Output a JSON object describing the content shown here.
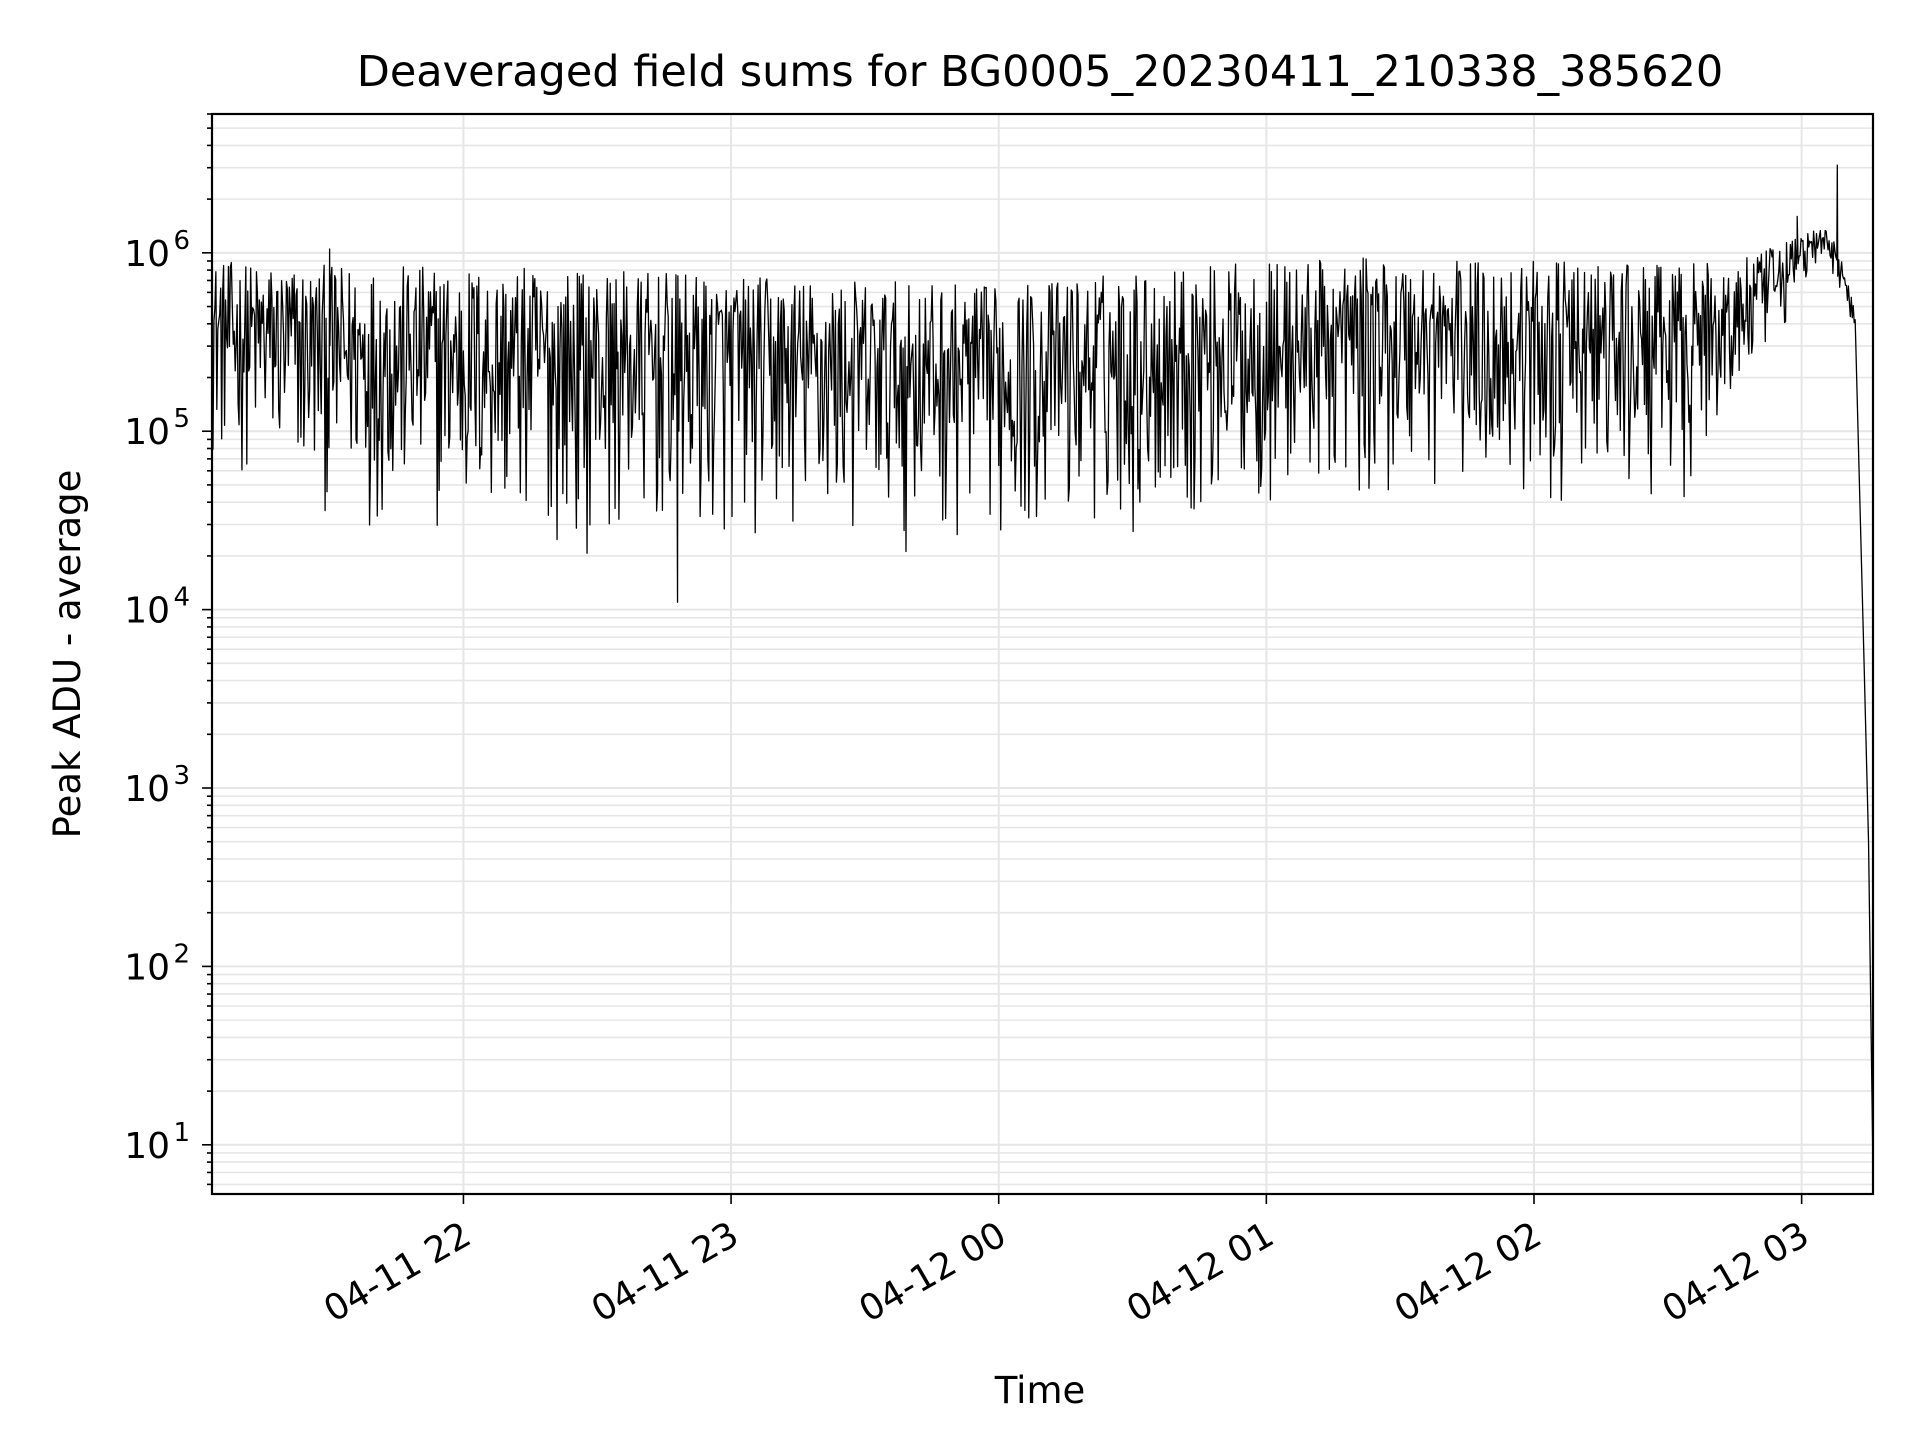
{
  "chart_data": {
    "type": "line",
    "title": "Deaveraged field sums for BG0005_20230411_210338_385620",
    "xlabel": "Time",
    "ylabel": "Peak ADU - average",
    "yscale": "log",
    "grid": true,
    "line_color": "#000000",
    "grid_color": "#e6e6e6",
    "ylim": [
      5.3,
      6000000
    ],
    "xlim": [
      "04-11 21:03:38",
      "04-12 03:16:00"
    ],
    "x_ticks": [
      "04-11 22",
      "04-11 23",
      "04-12 00",
      "04-12 01",
      "04-12 02",
      "04-12 03"
    ],
    "y_ticks": [
      {
        "base": "10",
        "exp": "1"
      },
      {
        "base": "10",
        "exp": "2"
      },
      {
        "base": "10",
        "exp": "3"
      },
      {
        "base": "10",
        "exp": "4"
      },
      {
        "base": "10",
        "exp": "5"
      },
      {
        "base": "10",
        "exp": "6"
      }
    ],
    "series": [
      {
        "envelope": {
          "x": [
            "04-11 21:03:38",
            "04-11 21:30",
            "04-11 22:00",
            "04-11 22:30",
            "04-11 23:00",
            "04-11 23:30",
            "04-12 00:00",
            "04-12 00:30",
            "04-12 01:00",
            "04-12 01:30",
            "04-12 02:00",
            "04-12 02:30",
            "04-12 02:45",
            "04-12 02:55",
            "04-12 03:00",
            "04-12 03:05",
            "04-12 03:08",
            "04-12 03:12",
            "04-12 03:14",
            "04-12 03:15",
            "04-12 03:16"
          ],
          "upper": [
            900000,
            850000,
            850000,
            800000,
            750000,
            700000,
            650000,
            800000,
            900000,
            950000,
            900000,
            850000,
            900000,
            1100000,
            1300000,
            1400000,
            1100000,
            500000,
            5000,
            500,
            7
          ],
          "lower": [
            60000,
            30000,
            22000,
            20000,
            20000,
            20000,
            22000,
            25000,
            30000,
            40000,
            35000,
            30000,
            100000,
            300000,
            600000,
            800000,
            700000,
            300000,
            5000,
            500,
            7
          ]
        },
        "peaks": [
          {
            "x": "04-12 03:08",
            "y": 3100000
          },
          {
            "x": "04-12 02:59",
            "y": 1600000
          },
          {
            "x": "04-11 21:30",
            "y": 1050000
          },
          {
            "x": "04-11 22:48",
            "y": 11000
          }
        ]
      }
    ]
  }
}
